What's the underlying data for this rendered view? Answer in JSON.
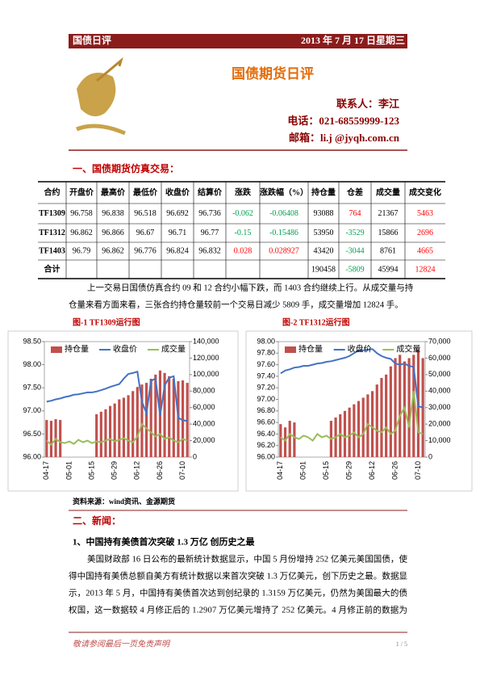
{
  "header": {
    "left": "国债日评",
    "right": "2013 年 7 月 17 日星期三"
  },
  "title": "国债期货日评",
  "contact": {
    "person": "联系人：李江",
    "phone": "电话：021-68559999-123",
    "email": "邮箱：li.j @jyqh.com.cn"
  },
  "section1": "一、国债期货仿真交易：",
  "table": {
    "header": [
      "合约",
      "开盘价",
      "最高价",
      "最低价",
      "收盘价",
      "结算价",
      "涨跌",
      "涨跌幅（%）",
      "持仓量",
      "仓差",
      "成交量",
      "成交变化"
    ],
    "rows": [
      [
        "TF1309",
        "96.758",
        "96.838",
        "96.518",
        "96.692",
        "96.736",
        "-0.062",
        "-0.06408",
        "93088",
        "764",
        "21367",
        "5463"
      ],
      [
        "TF1312",
        "96.862",
        "96.866",
        "96.67",
        "96.71",
        "96.77",
        "-0.15",
        "-0.15486",
        "53950",
        "-3529",
        "15866",
        "2696"
      ],
      [
        "TF1403",
        "96.79",
        "96.862",
        "96.776",
        "96.824",
        "96.832",
        "0.028",
        "0.028927",
        "43420",
        "-3044",
        "8761",
        "4665"
      ]
    ],
    "total": {
      "label": "合计",
      "open_interest": "190458",
      "oi_change": "-5809",
      "volume": "45994",
      "vol_change": "12824"
    }
  },
  "summary": [
    "上一交易日国债仿真合约 09 和 12 合约小幅下跌，而 1403 合约继续上行。从成交量与持",
    "仓量来看方面来看，三张合约持仓量较前一个交易日减少 5809 手，成交量增加 12824 手。"
  ],
  "charts": [
    {
      "type": "combo",
      "title": "图-1   TF1309运行图",
      "categories": [
        "04-17",
        null,
        null,
        null,
        null,
        "05-01",
        null,
        null,
        null,
        null,
        "05-15",
        null,
        null,
        null,
        null,
        "05-29",
        null,
        null,
        null,
        null,
        "06-12",
        null,
        null,
        null,
        null,
        "06-26",
        null,
        null,
        null,
        null,
        "07-10",
        null
      ],
      "ylim": [
        96,
        98.5
      ],
      "yticks": [
        {
          "value": 96,
          "label": "96.00"
        },
        {
          "value": 96.5,
          "label": "96.50"
        },
        {
          "value": 97,
          "label": "97.00"
        },
        {
          "value": 97.5,
          "label": "97.50"
        },
        {
          "value": 98,
          "label": "98.00"
        },
        {
          "value": 98.5,
          "label": "98.50"
        }
      ],
      "y2lim": [
        0,
        140000
      ],
      "y2ticks": [
        0,
        {
          "value": 20000,
          "label": "20,000"
        },
        {
          "value": 40000,
          "label": "40,000"
        },
        {
          "value": 60000,
          "label": "60,000"
        },
        {
          "value": 80000,
          "label": "80,000"
        },
        {
          "value": 100000,
          "label": "100,000"
        },
        {
          "value": 120000,
          "label": "120,000"
        },
        {
          "value": 140000,
          "label": "140,000"
        }
      ],
      "series": [
        {
          "name": "持仓量",
          "type": "bar",
          "axis": "y2",
          "color": "#c0504d",
          "values": [
            45000,
            44000,
            46000,
            45000,
            0,
            0,
            0,
            0,
            0,
            0,
            0,
            52000,
            55000,
            58000,
            62000,
            65000,
            70000,
            72000,
            75000,
            80000,
            85000,
            88000,
            90000,
            95000,
            100000,
            105000,
            102000,
            98000,
            95000,
            92000,
            93000,
            90000
          ]
        },
        {
          "name": "收盘价",
          "type": "line",
          "axis": "y",
          "color": "#4472c4",
          "values": [
            97.2,
            97.22,
            97.25,
            97.27,
            97.3,
            97.32,
            97.35,
            97.36,
            97.38,
            97.4,
            97.4,
            97.42,
            97.45,
            97.48,
            97.52,
            97.55,
            97.58,
            97.7,
            97.8,
            97.82,
            97.85,
            97.2,
            96.95,
            97.65,
            97.7,
            96.9,
            97.55,
            97.72,
            97.75,
            96.85,
            96.8,
            96.78
          ]
        },
        {
          "name": "成交量",
          "type": "line",
          "axis": "y2",
          "color": "#9bbb59",
          "values": [
            20000,
            15000,
            22000,
            18000,
            17000,
            19000,
            16000,
            21000,
            18000,
            20000,
            17000,
            19000,
            18000,
            20000,
            22000,
            19000,
            21000,
            23000,
            20000,
            18000,
            25000,
            40000,
            35000,
            30000,
            25000,
            28000,
            22000,
            24000,
            20000,
            18000,
            22000,
            20000
          ]
        }
      ]
    },
    {
      "type": "combo",
      "title": "图-2   TF1312运行图",
      "categories": [
        "04-17",
        null,
        null,
        null,
        null,
        "05-01",
        null,
        null,
        null,
        null,
        "05-15",
        null,
        null,
        null,
        null,
        "05-29",
        null,
        null,
        null,
        null,
        "06-12",
        null,
        null,
        null,
        null,
        "06-26",
        null,
        null,
        null,
        null,
        "07-10",
        null
      ],
      "ylim": [
        96,
        98
      ],
      "yticks": [
        {
          "value": 96,
          "label": "96.00"
        },
        {
          "value": 96.2,
          "label": "96.20"
        },
        {
          "value": 96.4,
          "label": "96.40"
        },
        {
          "value": 96.6,
          "label": "96.60"
        },
        {
          "value": 96.8,
          "label": "96.80"
        },
        {
          "value": 97,
          "label": "97.00"
        },
        {
          "value": 97.2,
          "label": "97.20"
        },
        {
          "value": 97.4,
          "label": "97.40"
        },
        {
          "value": 97.6,
          "label": "97.60"
        },
        {
          "value": 97.8,
          "label": "97.80"
        },
        {
          "value": 98,
          "label": "98.00"
        }
      ],
      "y2lim": [
        0,
        70000
      ],
      "y2ticks": [
        0,
        {
          "value": 10000,
          "label": "10,000"
        },
        {
          "value": 20000,
          "label": "20,000"
        },
        {
          "value": 30000,
          "label": "30,000"
        },
        {
          "value": 40000,
          "label": "40,000"
        },
        {
          "value": 50000,
          "label": "50,000"
        },
        {
          "value": 60000,
          "label": "60,000"
        },
        {
          "value": 70000,
          "label": "70,000"
        }
      ],
      "series": [
        {
          "name": "持仓量",
          "type": "bar",
          "axis": "y2",
          "color": "#c0504d",
          "values": [
            20000,
            18000,
            22000,
            21000,
            0,
            0,
            0,
            0,
            0,
            0,
            0,
            22000,
            24000,
            26000,
            28000,
            30000,
            32000,
            34000,
            36000,
            38000,
            40000,
            44000,
            48000,
            50000,
            55000,
            60000,
            62000,
            58000,
            60000,
            62000,
            65000,
            60000
          ]
        },
        {
          "name": "收盘价",
          "type": "line",
          "axis": "y",
          "color": "#4472c4",
          "values": [
            97.45,
            97.5,
            97.52,
            97.55,
            97.56,
            97.58,
            97.58,
            97.6,
            97.62,
            97.63,
            97.65,
            97.66,
            97.68,
            97.7,
            97.72,
            97.75,
            97.8,
            97.85,
            97.85,
            97.86,
            97.87,
            97.8,
            97.75,
            97.72,
            97.7,
            97.62,
            97.6,
            97.62,
            97.58,
            97.56,
            96.88,
            96.86
          ]
        },
        {
          "name": "成交量",
          "type": "line",
          "axis": "y2",
          "color": "#9bbb59",
          "values": [
            12000,
            10000,
            14000,
            12000,
            11000,
            13000,
            12000,
            10000,
            14000,
            12000,
            13000,
            11000,
            12000,
            14000,
            12000,
            13000,
            15000,
            12000,
            14000,
            20000,
            18000,
            16000,
            15000,
            18000,
            14000,
            16000,
            25000,
            30000,
            18000,
            40000,
            15000,
            14000
          ]
        }
      ]
    }
  ],
  "source": "资料来源：wind资讯、金源期货",
  "section2": "二、新闻：",
  "news_title": "1、中国持有美债首次突破 1.3 万亿  创历史之最",
  "news_lines": [
    "美国财政部 16 日公布的最新统计数据显示，中国 5 月份增持 252 亿美元美国国债，使",
    "得中国持有美债总额自美方有统计数据以来首次突破 1.3 万亿美元，创下历史之最。数据显",
    "示，2013 年 5 月，中国持有美债首次达到创纪录的 1.3159 万亿美元，仍然为美国最大的债",
    "权国，这一数据较 4 月修正后的 1.2907 万亿美元增持了 252 亿美元。4 月修正前的数据为"
  ],
  "footer": {
    "disclaimer": "敬请参阅最后一页免责声明",
    "page": "1 / 5"
  }
}
